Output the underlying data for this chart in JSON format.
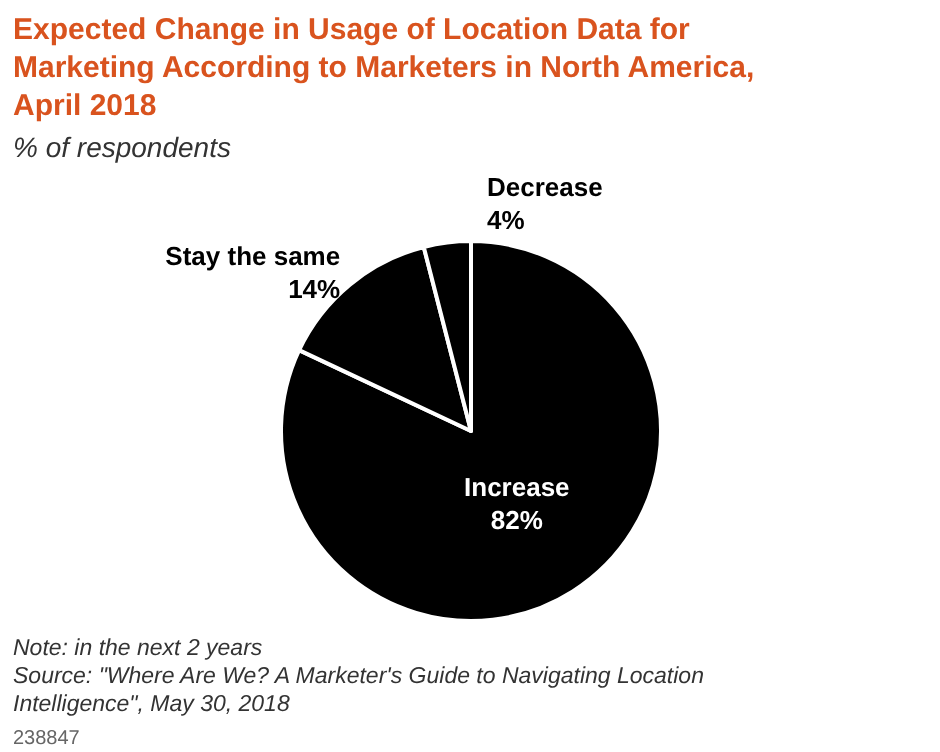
{
  "chart_data": {
    "type": "pie",
    "title": "Expected Change in Usage of Location Data for Marketing According to Marketers in North America, April 2018",
    "subtitle": "% of respondents",
    "categories": [
      "Increase",
      "Stay the same",
      "Decrease"
    ],
    "values": [
      82,
      14,
      4
    ],
    "value_labels": [
      "82%",
      "14%",
      "4%"
    ],
    "colors": [
      "#000000",
      "#000000",
      "#000000"
    ],
    "annotations": [
      "Note: in the next 2 years",
      "Source: \"Where Are We? A Marketer's Guide to Navigating Location Intelligence\", May 30, 2018",
      "238847"
    ]
  }
}
